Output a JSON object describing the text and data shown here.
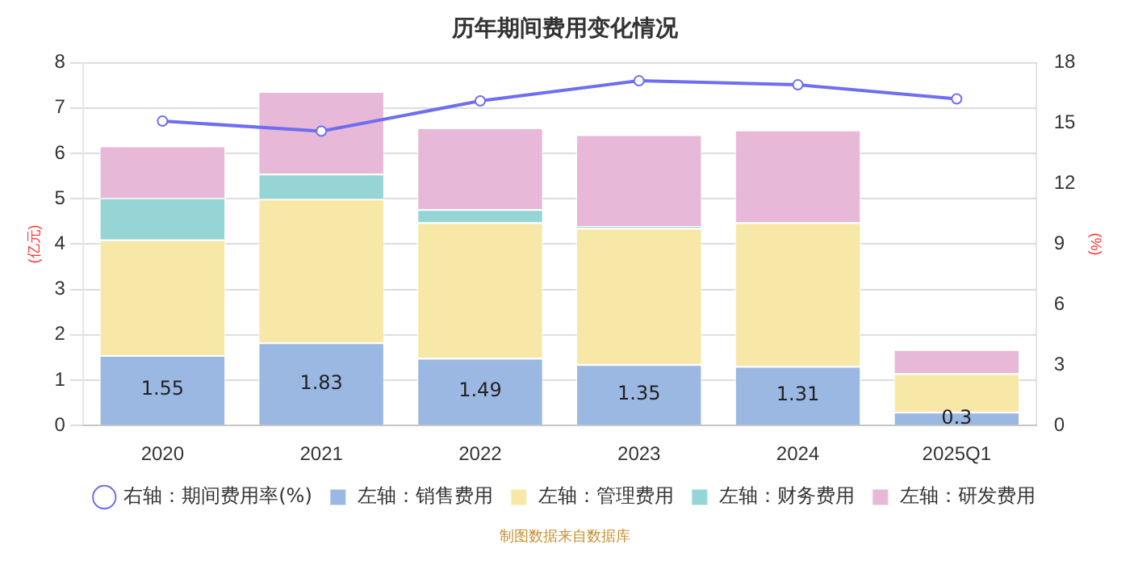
{
  "chart_data": {
    "type": "bar",
    "title": "历年期间费用变化情况",
    "ylabel": "(亿元)",
    "y2label": "(%)",
    "categories": [
      "2020",
      "2021",
      "2022",
      "2023",
      "2024",
      "2025Q1"
    ],
    "stacked": true,
    "series": [
      {
        "name": "左轴：销售费用",
        "color": "#9bb8e3",
        "values": [
          1.55,
          1.83,
          1.49,
          1.35,
          1.31,
          0.3
        ],
        "value_labels": [
          "1.55",
          "1.83",
          "1.49",
          "1.35",
          "1.31",
          "0.3"
        ]
      },
      {
        "name": "左轴：管理费用",
        "color": "#f8e8a8",
        "values": [
          2.55,
          3.17,
          2.99,
          3.01,
          3.17,
          0.85
        ]
      },
      {
        "name": "左轴：财务费用",
        "color": "#96d5d5",
        "values": [
          0.92,
          0.55,
          0.29,
          0.04,
          0,
          0
        ]
      },
      {
        "name": "左轴：研发费用",
        "color": "#e8b8d8",
        "values": [
          1.15,
          1.82,
          1.8,
          2.02,
          2.04,
          0.53
        ]
      },
      {
        "name": "右轴：期间费用率(%)",
        "type": "line",
        "axis": "y2",
        "color": "#6e6ef0",
        "marker": "circle",
        "values": [
          15.1,
          14.6,
          16.1,
          17.1,
          16.9,
          16.2
        ]
      }
    ],
    "ylim": [
      0,
      8
    ],
    "yticks": [
      0,
      1,
      2,
      3,
      4,
      5,
      6,
      7,
      8
    ],
    "y2lim": [
      0,
      18
    ],
    "y2ticks": [
      0,
      3,
      6,
      9,
      12,
      15,
      18
    ],
    "grid": "y",
    "legend": "bottom",
    "annotations": [
      "制图数据来自数据库"
    ]
  }
}
